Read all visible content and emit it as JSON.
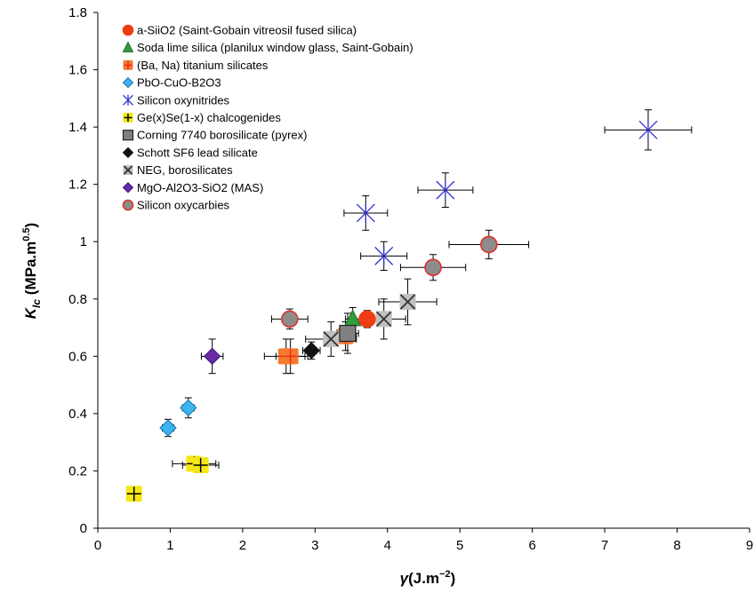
{
  "chart_data": {
    "type": "scatter",
    "xlabel_symbol": "γ",
    "xlabel_unit": "(J.m",
    "xlabel_exp": "−2",
    "xlabel_close": ")",
    "ylabel_symbol": "K",
    "ylabel_sub": "Ic",
    "ylabel_unit": " (MPa.m",
    "ylabel_exp": "0.5",
    "ylabel_close": ")",
    "xlim": [
      0,
      9
    ],
    "ylim": [
      0,
      1.8
    ],
    "xticks": [
      0,
      1,
      2,
      3,
      4,
      5,
      6,
      7,
      8,
      9
    ],
    "yticks": [
      "0",
      "0.2",
      "0.4",
      "0.6",
      "0.8",
      "1",
      "1.2",
      "1.4",
      "1.6",
      "1.8"
    ],
    "grid": false,
    "legend_position": "top-left",
    "series": [
      {
        "name": "a-SiiO2 (Saint-Gobain vitreosil fused silica)",
        "marker": "circle",
        "color": "#f03c14",
        "stroke": "#f03c14",
        "points": [
          {
            "x": 3.72,
            "y": 0.73,
            "xerr": 0.1,
            "yerr": 0.03
          }
        ]
      },
      {
        "name": "Soda lime silica (planilux window glass, Saint-Gobain)",
        "marker": "triangle",
        "color": "#2f9e3c",
        "stroke": "#1e6b28",
        "points": [
          {
            "x": 3.52,
            "y": 0.73,
            "xerr": 0.1,
            "yerr": 0.04
          }
        ]
      },
      {
        "name": "(Ba, Na) titanium silicates",
        "marker": "plus-square",
        "color": "#f47a30",
        "stroke": "#e8301a",
        "points": [
          {
            "x": 2.6,
            "y": 0.6,
            "xerr": 0.3,
            "yerr": 0.06
          },
          {
            "x": 2.66,
            "y": 0.6,
            "xerr": 0.2,
            "yerr": 0.06
          },
          {
            "x": 3.42,
            "y": 0.67,
            "xerr": 0.15,
            "yerr": 0.05
          }
        ]
      },
      {
        "name": "PbO-CuO-B2O3",
        "marker": "diamond",
        "color": "#3cb4f0",
        "stroke": "#1a6fae",
        "points": [
          {
            "x": 0.97,
            "y": 0.35,
            "xerr": 0.08,
            "yerr": 0.03
          },
          {
            "x": 1.25,
            "y": 0.42,
            "xerr": 0.08,
            "yerr": 0.035
          }
        ]
      },
      {
        "name": "Silicon oxynitrides",
        "marker": "star",
        "color": "#3030d0",
        "stroke": "#3030d0",
        "points": [
          {
            "x": 7.6,
            "y": 1.39,
            "xerr": 0.6,
            "yerr": 0.07
          },
          {
            "x": 4.8,
            "y": 1.18,
            "xerr": 0.38,
            "yerr": 0.06
          },
          {
            "x": 3.7,
            "y": 1.1,
            "xerr": 0.3,
            "yerr": 0.06
          },
          {
            "x": 3.95,
            "y": 0.95,
            "xerr": 0.32,
            "yerr": 0.05
          }
        ]
      },
      {
        "name": "Ge(x)Se(1-x) chalcogenides",
        "marker": "plus-square",
        "color": "#f5e617",
        "stroke": "#000000",
        "points": [
          {
            "x": 0.5,
            "y": 0.12,
            "xerr": 0.05,
            "yerr": 0.015
          },
          {
            "x": 1.33,
            "y": 0.225,
            "xerr": 0.3,
            "yerr": 0.02
          },
          {
            "x": 1.42,
            "y": 0.22,
            "xerr": 0.25,
            "yerr": 0.02
          }
        ]
      },
      {
        "name": "Corning 7740 borosilicate (pyrex)",
        "marker": "square",
        "color": "#808080",
        "stroke": "#222222",
        "points": [
          {
            "x": 3.45,
            "y": 0.68,
            "xerr": 0.15,
            "yerr": 0.07
          }
        ]
      },
      {
        "name": "Schott SF6 lead silicate",
        "marker": "diamond",
        "color": "#111111",
        "stroke": "#111111",
        "points": [
          {
            "x": 2.95,
            "y": 0.62,
            "xerr": 0.12,
            "yerr": 0.03
          }
        ]
      },
      {
        "name": "NEG, borosilicates",
        "marker": "x-square",
        "color": "#c0c0c0",
        "stroke": "#333333",
        "points": [
          {
            "x": 3.22,
            "y": 0.66,
            "xerr": 0.35,
            "yerr": 0.06
          },
          {
            "x": 3.95,
            "y": 0.73,
            "xerr": 0.3,
            "yerr": 0.07
          },
          {
            "x": 4.28,
            "y": 0.79,
            "xerr": 0.4,
            "yerr": 0.08
          }
        ]
      },
      {
        "name": "MgO-Al2O3-SiO2 (MAS)",
        "marker": "diamond",
        "color": "#6a2aa8",
        "stroke": "#3a1370",
        "points": [
          {
            "x": 1.58,
            "y": 0.6,
            "xerr": 0.15,
            "yerr": 0.06
          }
        ]
      },
      {
        "name": "Silicon oxycarbies",
        "marker": "circle",
        "color": "#8c8c8c",
        "stroke": "#e0302a",
        "points": [
          {
            "x": 2.65,
            "y": 0.73,
            "xerr": 0.25,
            "yerr": 0.035
          },
          {
            "x": 4.63,
            "y": 0.91,
            "xerr": 0.45,
            "yerr": 0.045
          },
          {
            "x": 5.4,
            "y": 0.99,
            "xerr": 0.55,
            "yerr": 0.05
          }
        ]
      }
    ]
  }
}
